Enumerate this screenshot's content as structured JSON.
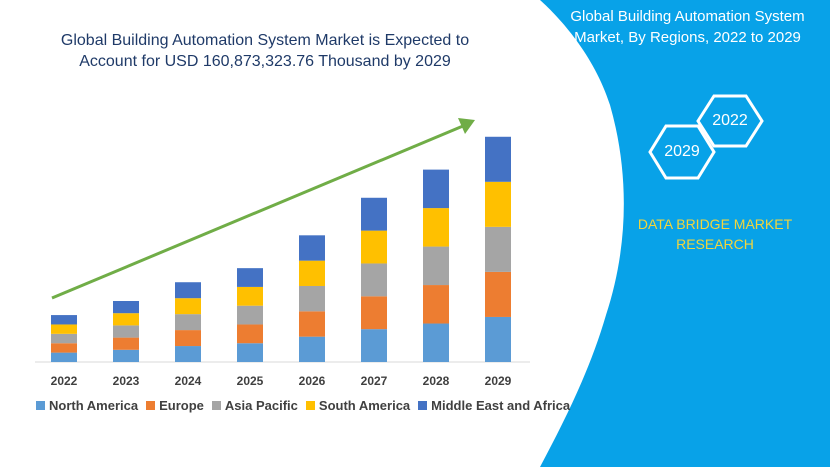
{
  "title_lines": [
    "Global Building Automation System Market is Expected to",
    "Account for USD 160,873,323.76 Thousand by 2029"
  ],
  "panel_title_lines": [
    "Global Building Automation System",
    "Market, By Regions, 2022 to 2029"
  ],
  "brand_lines": [
    "DATA BRIDGE MARKET",
    "RESEARCH"
  ],
  "hex_labels": {
    "a": "2022",
    "b": "2029"
  },
  "colors": {
    "panel_blue": "#08a2e8",
    "brand_yellow": "#f2d53c",
    "arrow_green": "#70ad47",
    "axis_gray": "#d9d9d9",
    "series": [
      "#5b9bd5",
      "#ed7d31",
      "#a5a5a5",
      "#ffc000",
      "#4472c4"
    ]
  },
  "chart_data": {
    "type": "bar",
    "stacked": true,
    "title": "Global Building Automation System Market is Expected to Account for USD 160,873,323.76 Thousand by 2029",
    "xlabel": "",
    "ylabel": "",
    "categories": [
      "2022",
      "2023",
      "2024",
      "2025",
      "2026",
      "2027",
      "2028",
      "2029"
    ],
    "series": [
      {
        "name": "North America",
        "values": [
          10,
          13,
          17,
          20,
          27,
          35,
          41,
          48
        ]
      },
      {
        "name": "Europe",
        "values": [
          10,
          13,
          17,
          20,
          27,
          35,
          41,
          48
        ]
      },
      {
        "name": "Asia Pacific",
        "values": [
          10,
          13,
          17,
          20,
          27,
          35,
          41,
          48
        ]
      },
      {
        "name": "South America",
        "values": [
          10,
          13,
          17,
          20,
          27,
          35,
          41,
          48
        ]
      },
      {
        "name": "Middle East and Africa",
        "values": [
          10,
          13,
          17,
          20,
          27,
          35,
          41,
          48
        ]
      }
    ],
    "ylim": [
      0,
      260
    ],
    "grid": false,
    "legend_position": "bottom"
  }
}
